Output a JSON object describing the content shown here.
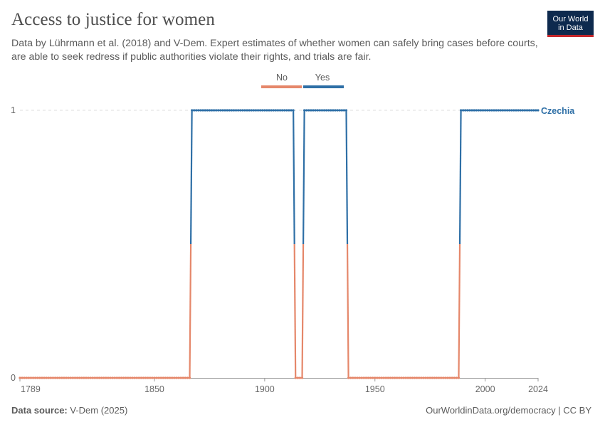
{
  "header": {
    "title": "Access to justice for women",
    "subtitle": "Data by Lührmann et al. (2018) and V-Dem. Expert estimates of whether women can safely bring cases before courts, are able to seek redress if public authorities violate their rights, and trials are fair."
  },
  "logo": {
    "line1": "Our World",
    "line2": "in Data"
  },
  "footer": {
    "source_label": "Data source:",
    "source_value": "V-Dem (2025)",
    "right": "OurWorldinData.org/democracy | CC BY"
  },
  "colors": {
    "no": "#e5876a",
    "yes": "#2e6fa6",
    "grid": "#dddddd",
    "axis": "#999999"
  },
  "chart_data": {
    "type": "line",
    "title": "Access to justice for women",
    "series_name": "Czechia",
    "x_range": [
      1789,
      2024
    ],
    "ylim": [
      0,
      1
    ],
    "x_ticks": [
      1789,
      1850,
      1900,
      1950,
      2000,
      2024
    ],
    "y_ticks": [
      0,
      1
    ],
    "legend": {
      "placement": "top",
      "entries": [
        "No",
        "Yes"
      ]
    },
    "periods": [
      {
        "start": 1789,
        "end": 1866,
        "value": 0
      },
      {
        "start": 1867,
        "end": 1913,
        "value": 1
      },
      {
        "start": 1914,
        "end": 1917,
        "value": 0
      },
      {
        "start": 1918,
        "end": 1937,
        "value": 1
      },
      {
        "start": 1938,
        "end": 1988,
        "value": 0
      },
      {
        "start": 1989,
        "end": 2024,
        "value": 1
      }
    ]
  }
}
